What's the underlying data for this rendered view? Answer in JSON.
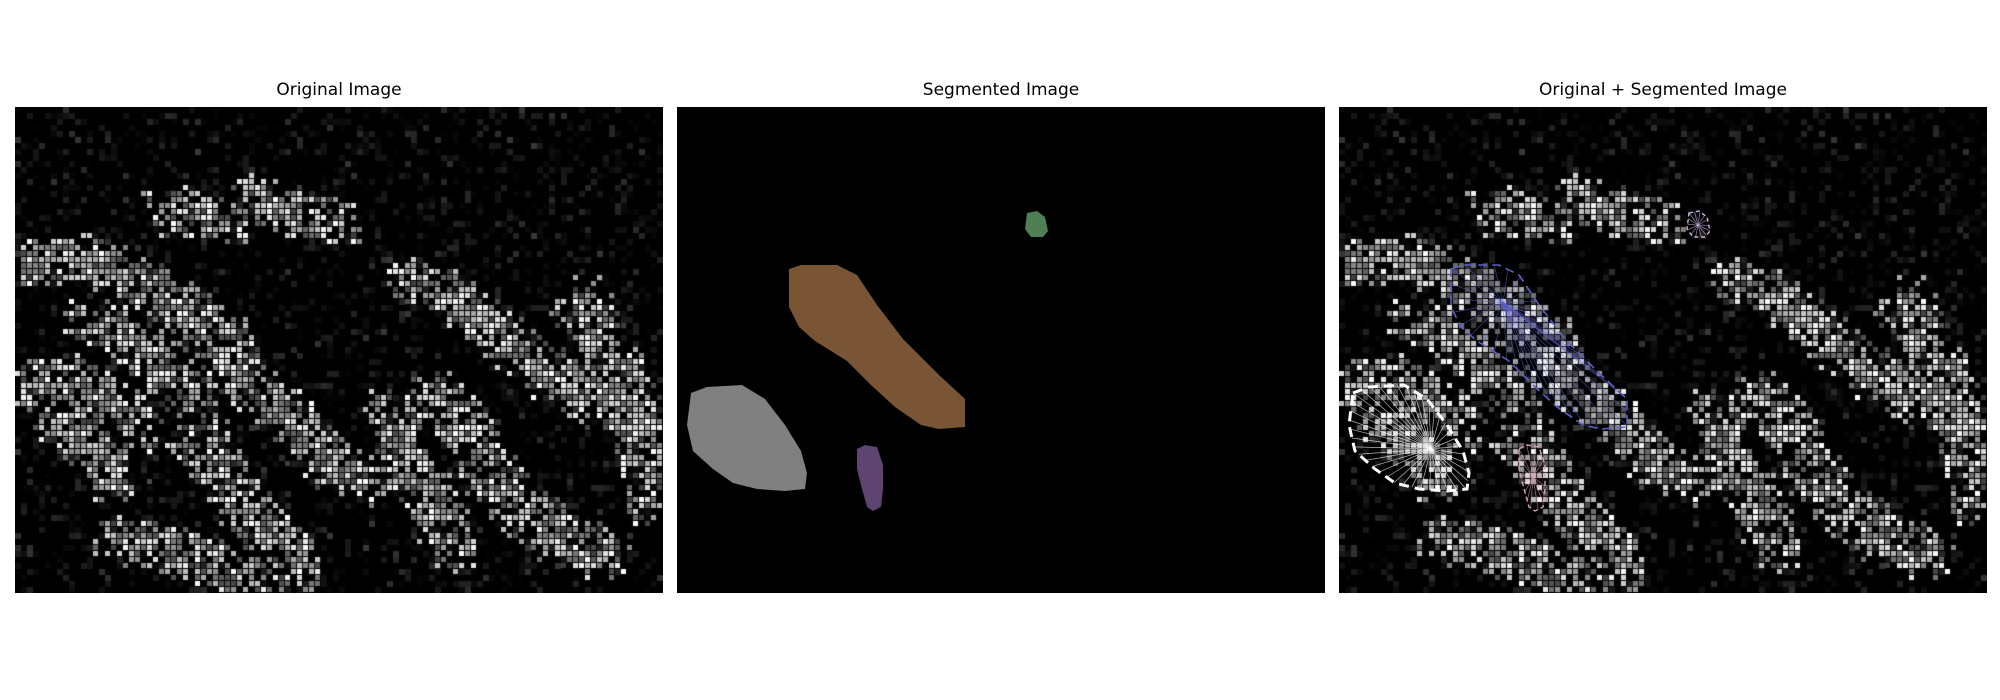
{
  "panels": [
    {
      "title": "Original Image"
    },
    {
      "title": "Segmented Image"
    },
    {
      "title": "Original + Segmented Image"
    }
  ],
  "colors": {
    "background": "#000000",
    "segment_gray": "#808080",
    "segment_brown": "#7a5535",
    "segment_purple": "#5e4470",
    "segment_green": "#4f7f55",
    "contour_white": "#ffffff",
    "contour_blue": "#5b5fc4",
    "contour_pink": "#d9a0b0",
    "contour_lavender": "#c9b3e0"
  },
  "segments": [
    {
      "name": "gray-region",
      "color_key": "segment_gray"
    },
    {
      "name": "brown-region",
      "color_key": "segment_brown"
    },
    {
      "name": "purple-region",
      "color_key": "segment_purple"
    },
    {
      "name": "green-region",
      "color_key": "segment_green"
    }
  ]
}
